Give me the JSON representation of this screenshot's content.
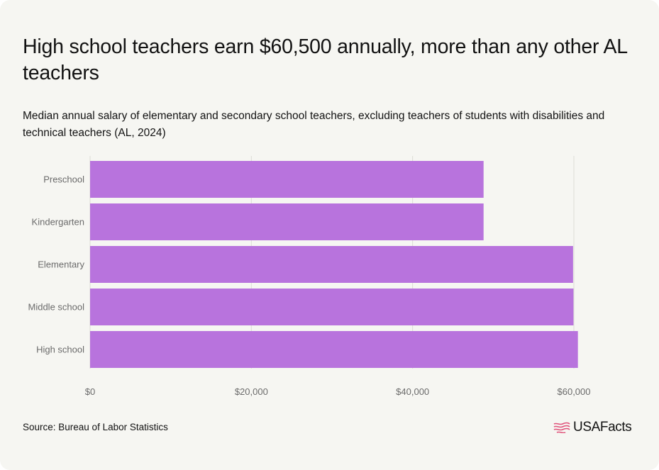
{
  "title": "High school teachers earn $60,500 annually, more than any other AL teachers",
  "subtitle": "Median annual salary of elementary and secondary school teachers, excluding teachers of students with disabilities and technical teachers (AL, 2024)",
  "source": "Source: Bureau of Labor Statistics",
  "brand": "USAFacts",
  "colors": {
    "bar": "#b873dd",
    "grid": "#dcdcd6",
    "axis_text": "#6b6b6b",
    "background": "#f6f6f2"
  },
  "chart_data": {
    "type": "bar",
    "orientation": "horizontal",
    "categories": [
      "Preschool",
      "Kindergarten",
      "Elementary",
      "Middle school",
      "High school"
    ],
    "values": [
      48800,
      48800,
      59900,
      59950,
      60500
    ],
    "xlim": [
      0,
      65000
    ],
    "xticks": [
      0,
      20000,
      40000,
      60000
    ],
    "xtick_labels": [
      "$0",
      "$20,000",
      "$40,000",
      "$60,000"
    ],
    "grid": "vertical"
  }
}
